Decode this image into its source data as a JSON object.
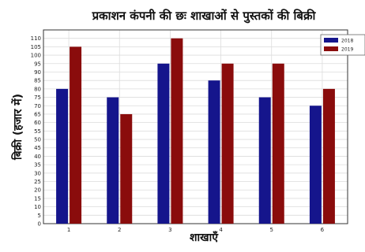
{
  "chart_data": {
    "type": "bar",
    "title": "प्रकाशन कंपनी की छः शाखाओं से पुस्तकों की बिक्री",
    "xlabel": "शाखाएँ",
    "ylabel": "बिक्री (हजार में)",
    "categories": [
      "1",
      "2",
      "3",
      "4",
      "5",
      "6"
    ],
    "series": [
      {
        "name": "2018",
        "values": [
          80,
          75,
          95,
          85,
          75,
          70
        ]
      },
      {
        "name": "2019",
        "values": [
          105,
          65,
          110,
          95,
          95,
          80
        ]
      }
    ],
    "ylim": [
      0,
      115
    ],
    "yticks": [
      0,
      5,
      10,
      15,
      20,
      25,
      30,
      35,
      40,
      45,
      50,
      55,
      60,
      65,
      70,
      75,
      80,
      85,
      90,
      95,
      100,
      105,
      110
    ],
    "grid": true,
    "legend_position": "top-right",
    "colors": {
      "2018": "#15158c",
      "2019": "#8a0c0c"
    }
  }
}
